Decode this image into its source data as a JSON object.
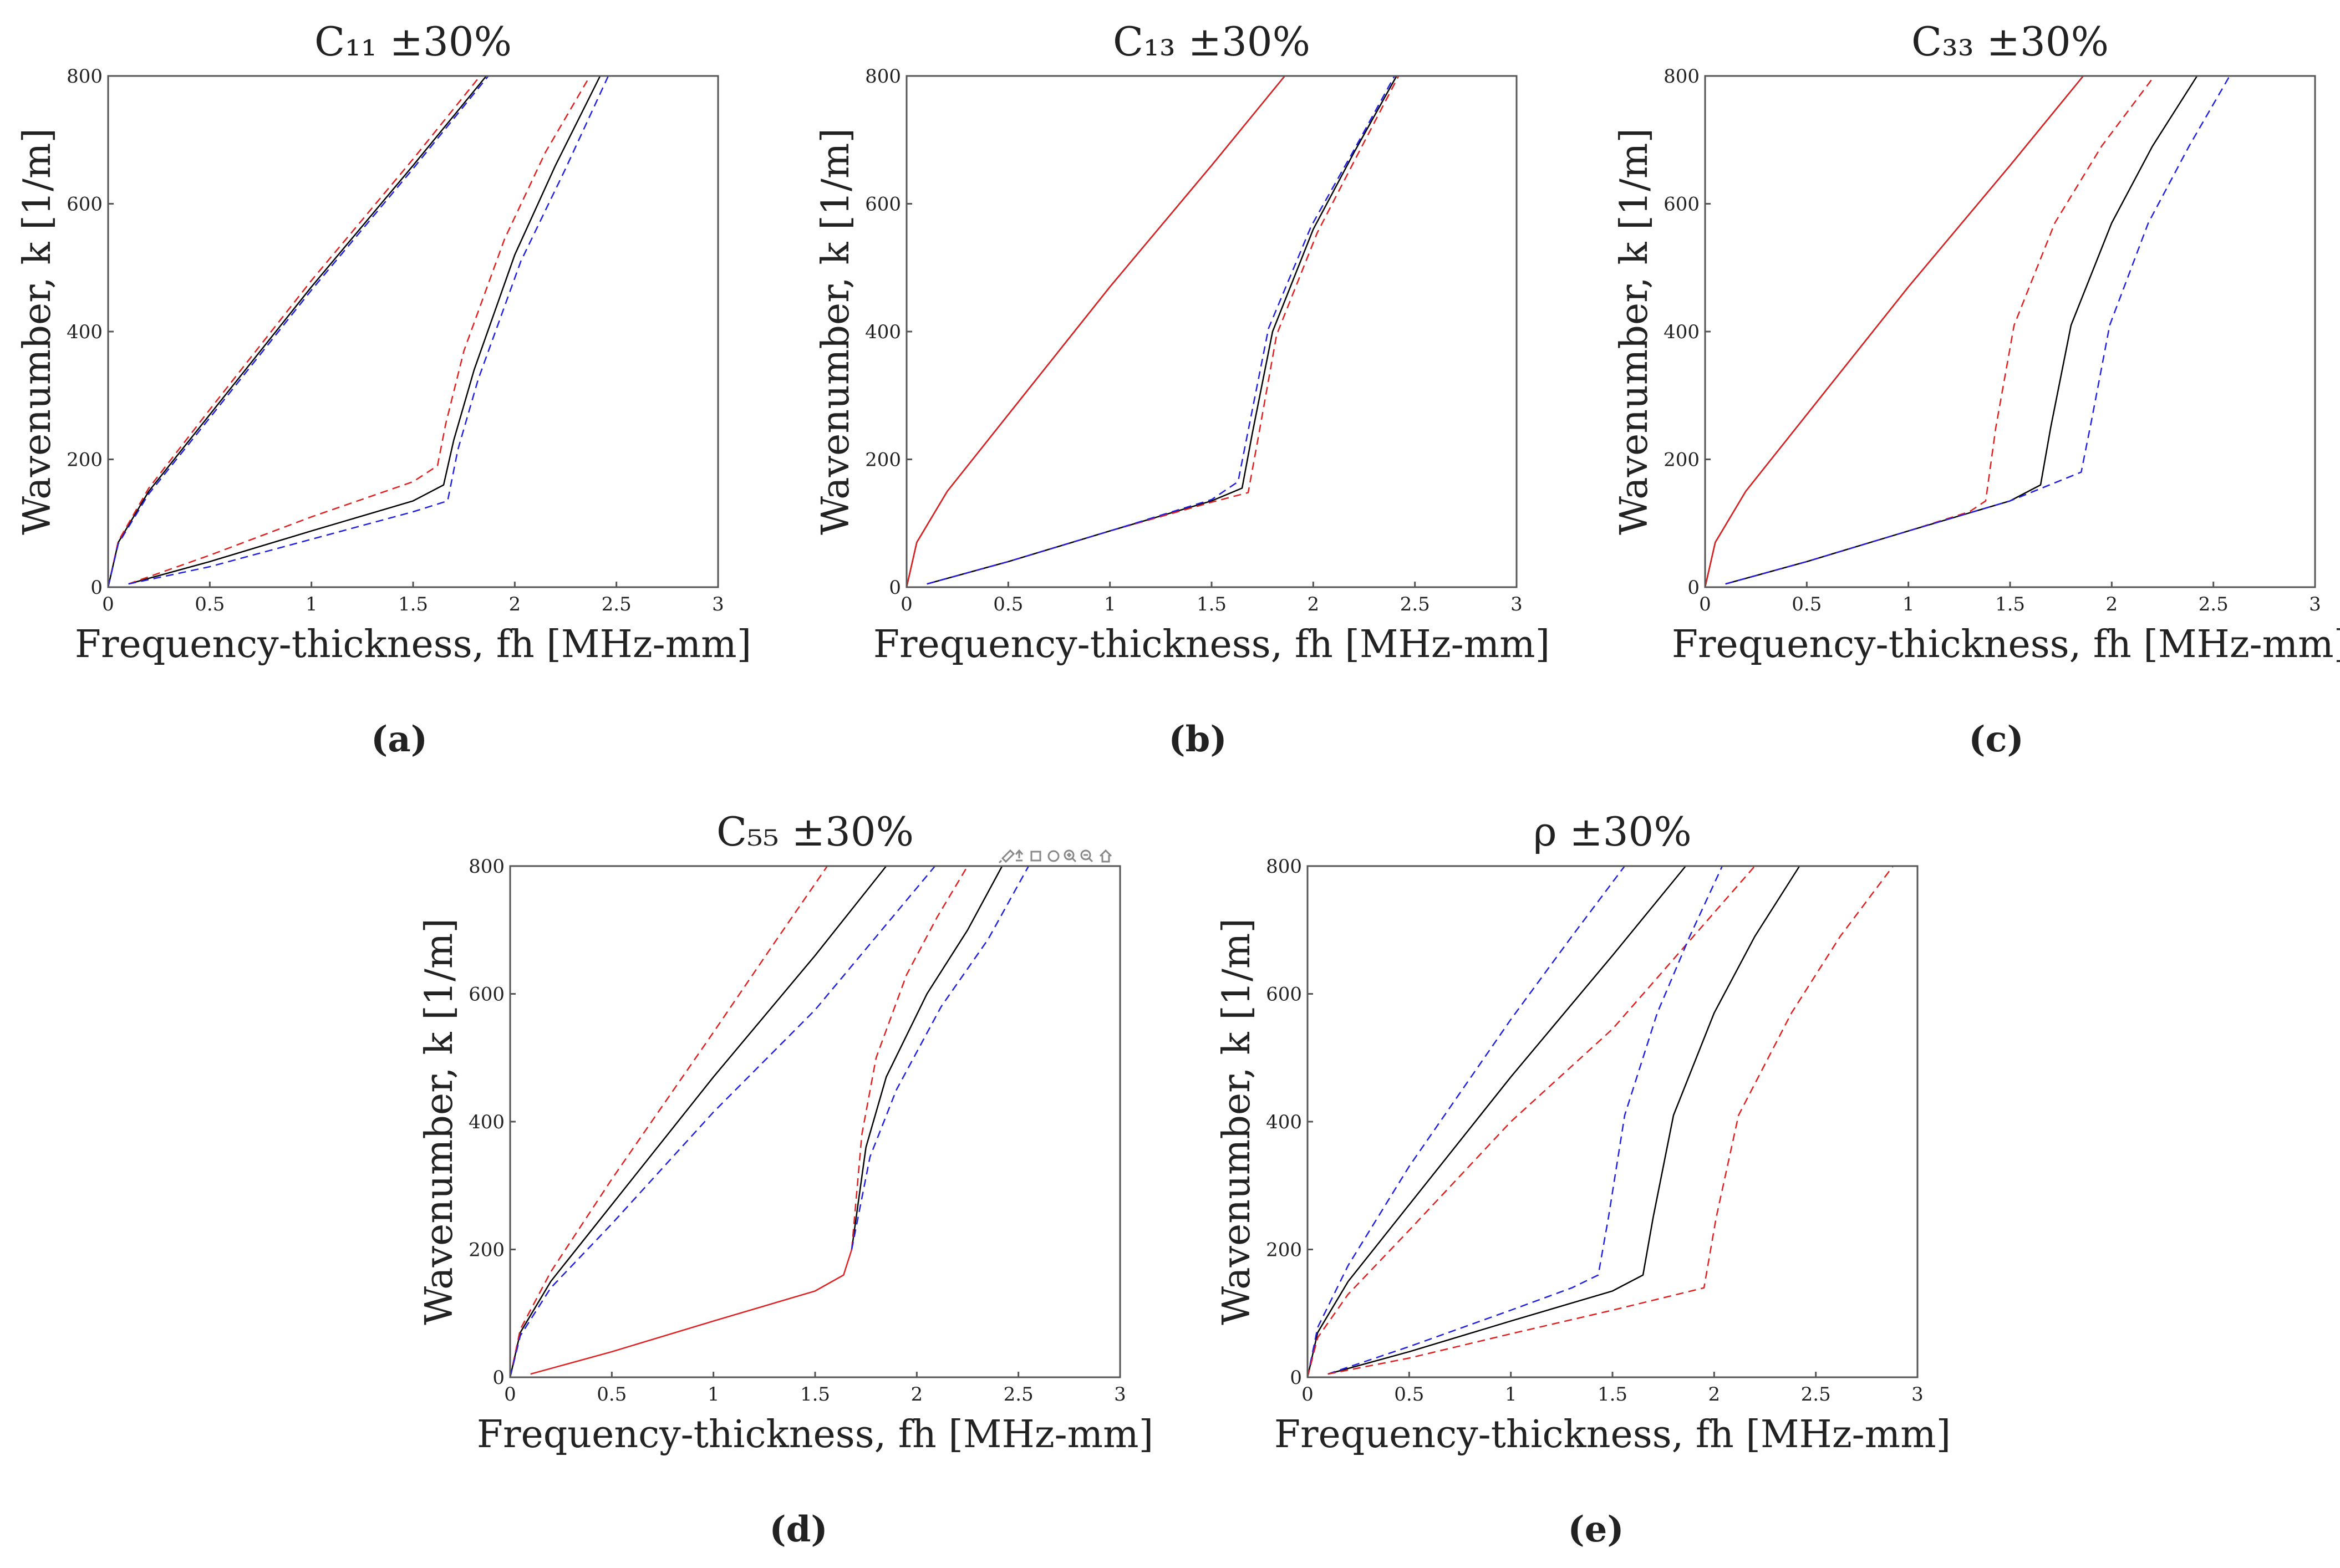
{
  "chart_data": [
    {
      "type": "line",
      "title": "C₁₁ ±30%",
      "caption": "(a)",
      "xlabel": "Frequency-thickness, fh [MHz-mm]",
      "ylabel": "Wavenumber, k [1/m]",
      "xlim": [
        0,
        3
      ],
      "ylim": [
        0,
        800
      ],
      "xticks": [
        0,
        0.5,
        1,
        1.5,
        2,
        2.5,
        3
      ],
      "xtick_labels": [
        "0",
        "0.5",
        "1",
        "1.5",
        "2",
        "2.5",
        "3"
      ],
      "yticks": [
        0,
        200,
        400,
        600,
        800
      ],
      "ytick_labels": [
        "0",
        "200",
        "400",
        "600",
        "800"
      ],
      "series": [
        {
          "color": "#000000",
          "style": "solid",
          "x": [
            0,
            0.05,
            0.2,
            0.5,
            1.0,
            1.5,
            1.86
          ],
          "y": [
            0,
            70,
            150,
            270,
            470,
            660,
            800
          ]
        },
        {
          "color": "#e02020",
          "style": "dashed",
          "x": [
            0,
            0.05,
            0.2,
            0.5,
            1.0,
            1.5,
            1.83
          ],
          "y": [
            0,
            72,
            155,
            278,
            480,
            670,
            800
          ]
        },
        {
          "color": "#2020e0",
          "style": "dashed",
          "x": [
            0,
            0.05,
            0.2,
            0.5,
            1.0,
            1.5,
            1.87
          ],
          "y": [
            0,
            68,
            146,
            265,
            465,
            655,
            800
          ]
        },
        {
          "color": "#000000",
          "style": "solid",
          "x": [
            0.1,
            0.5,
            1.0,
            1.5,
            1.65,
            1.7,
            1.8,
            2.0,
            2.2,
            2.42
          ],
          "y": [
            5,
            40,
            88,
            135,
            160,
            230,
            340,
            520,
            660,
            800
          ]
        },
        {
          "color": "#e02020",
          "style": "dashed",
          "x": [
            0.1,
            0.5,
            1.0,
            1.5,
            1.62,
            1.66,
            1.75,
            1.95,
            2.15,
            2.37
          ],
          "y": [
            5,
            50,
            110,
            165,
            190,
            255,
            370,
            545,
            680,
            800
          ]
        },
        {
          "color": "#2020e0",
          "style": "dashed",
          "x": [
            0.1,
            0.5,
            1.0,
            1.5,
            1.67,
            1.72,
            1.82,
            2.03,
            2.25,
            2.46
          ],
          "y": [
            5,
            32,
            75,
            118,
            135,
            215,
            325,
            510,
            655,
            800
          ]
        }
      ]
    },
    {
      "type": "line",
      "title": "C₁₃ ±30%",
      "caption": "(b)",
      "xlabel": "Frequency-thickness, fh [MHz-mm]",
      "ylabel": "Wavenumber, k [1/m]",
      "xlim": [
        0,
        3
      ],
      "ylim": [
        0,
        800
      ],
      "xticks": [
        0,
        0.5,
        1,
        1.5,
        2,
        2.5,
        3
      ],
      "xtick_labels": [
        "0",
        "0.5",
        "1",
        "1.5",
        "2",
        "2.5",
        "3"
      ],
      "yticks": [
        0,
        200,
        400,
        600,
        800
      ],
      "ytick_labels": [
        "0",
        "200",
        "400",
        "600",
        "800"
      ],
      "series": [
        {
          "color": "#000000",
          "style": "solid",
          "x": [
            0,
            0.05,
            0.2,
            0.5,
            1.0,
            1.5,
            1.86
          ],
          "y": [
            0,
            70,
            150,
            270,
            470,
            660,
            800
          ]
        },
        {
          "color": "#e02020",
          "style": "solid",
          "x": [
            0,
            0.05,
            0.2,
            0.5,
            1.0,
            1.5,
            1.86
          ],
          "y": [
            0,
            70,
            150,
            270,
            470,
            660,
            800
          ]
        },
        {
          "color": "#000000",
          "style": "solid",
          "x": [
            0.1,
            0.5,
            1.0,
            1.5,
            1.65,
            1.7,
            1.8,
            2.0,
            2.2,
            2.41
          ],
          "y": [
            5,
            40,
            88,
            135,
            155,
            240,
            400,
            560,
            680,
            800
          ]
        },
        {
          "color": "#e02020",
          "style": "dashed",
          "x": [
            0.1,
            0.5,
            1.0,
            1.5,
            1.68,
            1.73,
            1.82,
            2.02,
            2.22,
            2.42
          ],
          "y": [
            5,
            40,
            88,
            133,
            148,
            235,
            395,
            555,
            678,
            800
          ]
        },
        {
          "color": "#2020e0",
          "style": "dashed",
          "x": [
            0.1,
            0.5,
            1.0,
            1.5,
            1.63,
            1.68,
            1.78,
            1.99,
            2.2,
            2.4
          ],
          "y": [
            5,
            40,
            88,
            137,
            165,
            245,
            405,
            565,
            684,
            800
          ]
        }
      ]
    },
    {
      "type": "line",
      "title": "C₃₃ ±30%",
      "caption": "(c)",
      "xlabel": "Frequency-thickness, fh [MHz-mm]",
      "ylabel": "Wavenumber, k [1/m]",
      "xlim": [
        0,
        3
      ],
      "ylim": [
        0,
        800
      ],
      "xticks": [
        0,
        0.5,
        1,
        1.5,
        2,
        2.5,
        3
      ],
      "xtick_labels": [
        "0",
        "0.5",
        "1",
        "1.5",
        "2",
        "2.5",
        "3"
      ],
      "yticks": [
        0,
        200,
        400,
        600,
        800
      ],
      "ytick_labels": [
        "0",
        "200",
        "400",
        "600",
        "800"
      ],
      "series": [
        {
          "color": "#000000",
          "style": "solid",
          "x": [
            0,
            0.05,
            0.2,
            0.5,
            1.0,
            1.5,
            1.86
          ],
          "y": [
            0,
            70,
            150,
            270,
            470,
            660,
            800
          ]
        },
        {
          "color": "#e02020",
          "style": "solid",
          "x": [
            0,
            0.05,
            0.2,
            0.5,
            1.0,
            1.5,
            1.86
          ],
          "y": [
            0,
            70,
            150,
            270,
            470,
            660,
            800
          ]
        },
        {
          "color": "#000000",
          "style": "solid",
          "x": [
            0.1,
            0.5,
            1.0,
            1.5,
            1.65,
            1.7,
            1.8,
            2.0,
            2.2,
            2.42
          ],
          "y": [
            5,
            40,
            88,
            135,
            160,
            250,
            410,
            570,
            690,
            800
          ]
        },
        {
          "color": "#e02020",
          "style": "dashed",
          "x": [
            0.1,
            0.5,
            1.0,
            1.3,
            1.38,
            1.43,
            1.52,
            1.72,
            1.95,
            2.21
          ],
          "y": [
            5,
            40,
            88,
            118,
            135,
            250,
            410,
            570,
            690,
            800
          ]
        },
        {
          "color": "#2020e0",
          "style": "dashed",
          "x": [
            0.1,
            0.5,
            1.0,
            1.5,
            1.85,
            1.9,
            1.99,
            2.18,
            2.38,
            2.58
          ],
          "y": [
            5,
            40,
            88,
            135,
            180,
            260,
            410,
            570,
            690,
            800
          ]
        }
      ]
    },
    {
      "type": "line",
      "title": "C₅₅ ±30%",
      "caption": "(d)",
      "xlabel": "Frequency-thickness, fh [MHz-mm]",
      "ylabel": "Wavenumber, k [1/m]",
      "xlim": [
        0,
        3
      ],
      "ylim": [
        0,
        800
      ],
      "xticks": [
        0,
        0.5,
        1,
        1.5,
        2,
        2.5,
        3
      ],
      "xtick_labels": [
        "0",
        "0.5",
        "1",
        "1.5",
        "2",
        "2.5",
        "3"
      ],
      "yticks": [
        0,
        200,
        400,
        600,
        800
      ],
      "ytick_labels": [
        "0",
        "200",
        "400",
        "600",
        "800"
      ],
      "series": [
        {
          "color": "#000000",
          "style": "solid",
          "x": [
            0,
            0.05,
            0.2,
            0.5,
            1.0,
            1.5,
            1.85
          ],
          "y": [
            0,
            70,
            150,
            270,
            470,
            660,
            800
          ]
        },
        {
          "color": "#e02020",
          "style": "dashed",
          "x": [
            0,
            0.05,
            0.2,
            0.5,
            1.0,
            1.3,
            1.56
          ],
          "y": [
            0,
            75,
            165,
            310,
            540,
            680,
            800
          ]
        },
        {
          "color": "#2020e0",
          "style": "dashed",
          "x": [
            0,
            0.05,
            0.2,
            0.5,
            1.0,
            1.5,
            2.09
          ],
          "y": [
            0,
            65,
            140,
            240,
            415,
            575,
            800
          ]
        },
        {
          "color": "#e02020",
          "style": "solid",
          "x": [
            0.1,
            0.5,
            1.0,
            1.5,
            1.64,
            1.68
          ],
          "y": [
            5,
            40,
            88,
            135,
            160,
            200
          ]
        },
        {
          "color": "#000000",
          "style": "solid",
          "x": [
            1.68,
            1.75,
            1.85,
            2.05,
            2.25,
            2.42
          ],
          "y": [
            200,
            360,
            470,
            600,
            700,
            800
          ]
        },
        {
          "color": "#e02020",
          "style": "dashed",
          "x": [
            1.68,
            1.73,
            1.8,
            1.95,
            2.1,
            2.25
          ],
          "y": [
            200,
            380,
            500,
            630,
            720,
            800
          ]
        },
        {
          "color": "#2020e0",
          "style": "dashed",
          "x": [
            1.68,
            1.77,
            1.9,
            2.12,
            2.35,
            2.55
          ],
          "y": [
            200,
            345,
            450,
            580,
            685,
            800
          ]
        }
      ]
    },
    {
      "type": "line",
      "title": "ρ ±30%",
      "caption": "(e)",
      "xlabel": "Frequency-thickness, fh [MHz-mm]",
      "ylabel": "Wavenumber, k [1/m]",
      "xlim": [
        0,
        3
      ],
      "ylim": [
        0,
        800
      ],
      "xticks": [
        0,
        0.5,
        1,
        1.5,
        2,
        2.5,
        3
      ],
      "xtick_labels": [
        "0",
        "0.5",
        "1",
        "1.5",
        "2",
        "2.5",
        "3"
      ],
      "yticks": [
        0,
        200,
        400,
        600,
        800
      ],
      "ytick_labels": [
        "0",
        "200",
        "400",
        "600",
        "800"
      ],
      "series": [
        {
          "color": "#000000",
          "style": "solid",
          "x": [
            0,
            0.05,
            0.2,
            0.5,
            1.0,
            1.5,
            1.86
          ],
          "y": [
            0,
            70,
            150,
            270,
            470,
            660,
            800
          ]
        },
        {
          "color": "#2020e0",
          "style": "dashed",
          "x": [
            0,
            0.05,
            0.2,
            0.5,
            1.0,
            1.3,
            1.56
          ],
          "y": [
            0,
            78,
            175,
            330,
            560,
            690,
            800
          ]
        },
        {
          "color": "#e02020",
          "style": "dashed",
          "x": [
            0,
            0.05,
            0.2,
            0.5,
            1.0,
            1.5,
            2.2
          ],
          "y": [
            0,
            62,
            130,
            230,
            400,
            545,
            800
          ]
        },
        {
          "color": "#000000",
          "style": "solid",
          "x": [
            0.1,
            0.5,
            1.0,
            1.5,
            1.65,
            1.7,
            1.8,
            2.0,
            2.2,
            2.42
          ],
          "y": [
            5,
            40,
            88,
            135,
            160,
            250,
            410,
            570,
            690,
            800
          ]
        },
        {
          "color": "#2020e0",
          "style": "dashed",
          "x": [
            0.1,
            0.5,
            1.0,
            1.3,
            1.43,
            1.48,
            1.56,
            1.72,
            1.88,
            2.04
          ],
          "y": [
            5,
            48,
            105,
            140,
            160,
            250,
            410,
            570,
            690,
            800
          ]
        },
        {
          "color": "#e02020",
          "style": "dashed",
          "x": [
            0.1,
            0.5,
            1.0,
            1.5,
            1.95,
            2.01,
            2.12,
            2.38,
            2.62,
            2.88
          ],
          "y": [
            5,
            30,
            68,
            105,
            140,
            250,
            410,
            570,
            690,
            800
          ]
        }
      ]
    }
  ]
}
